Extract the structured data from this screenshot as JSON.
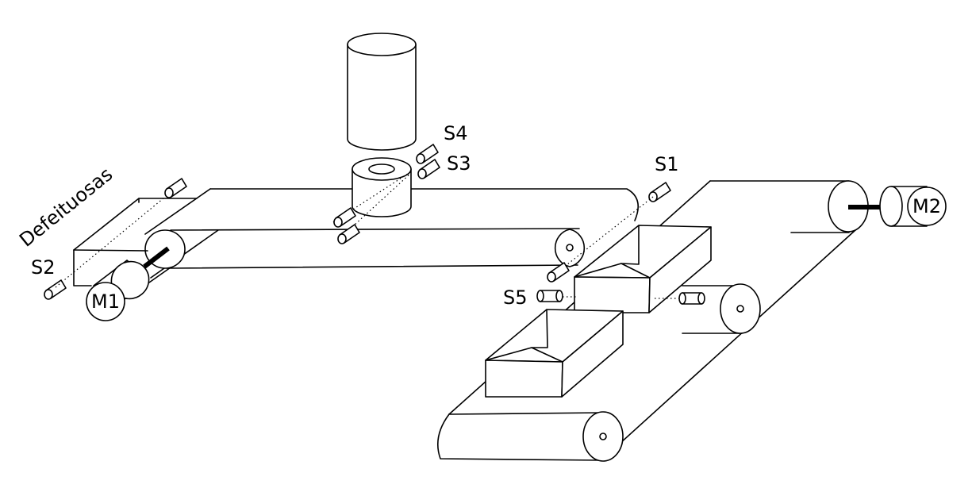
{
  "diagram": {
    "bin_label": "Defeituosas",
    "sensors": {
      "s1": "S1",
      "s2": "S2",
      "s3": "S3",
      "s4": "S4",
      "s5": "S5"
    },
    "motors": {
      "m1": "M1",
      "m2": "M2"
    }
  }
}
